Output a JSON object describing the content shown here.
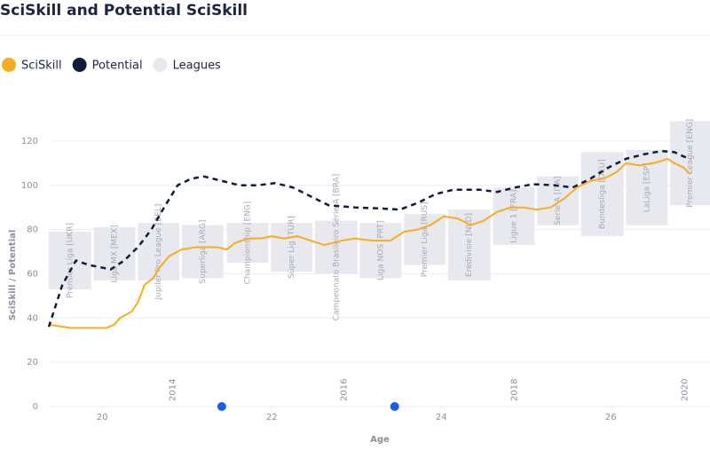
{
  "chart_data": {
    "type": "line",
    "title": "SciSkill and Potential SciSkill",
    "y_label": "SciSkill / Potential",
    "x_label": "Age",
    "xlim": [
      19.37,
      27.17
    ],
    "ylim": [
      0,
      130
    ],
    "xticks": [
      20,
      22,
      24,
      26
    ],
    "yticks": [
      0,
      20,
      40,
      60,
      80,
      100,
      120
    ],
    "grid": true,
    "legend": "top-left",
    "series": [
      {
        "name": "SciSkill",
        "color": "#fbab1f",
        "dashed": false,
        "x": [
          19.37,
          19.63,
          20.05,
          20.14,
          20.21,
          20.35,
          20.42,
          20.5,
          20.6,
          20.68,
          20.79,
          20.94,
          21.1,
          21.36,
          21.47,
          21.57,
          21.73,
          21.88,
          21.99,
          22.15,
          22.3,
          22.46,
          22.62,
          22.83,
          22.98,
          23.19,
          23.4,
          23.56,
          23.72,
          23.87,
          24.03,
          24.19,
          24.35,
          24.5,
          24.66,
          24.82,
          24.97,
          25.13,
          25.29,
          25.45,
          25.6,
          25.76,
          25.92,
          26.07,
          26.18,
          26.34,
          26.49,
          26.6,
          26.67,
          26.75,
          26.86,
          26.94
        ],
        "values": [
          37,
          35.5,
          35.5,
          37,
          40,
          43,
          47,
          55,
          58,
          63,
          68,
          71,
          72,
          72,
          71,
          74,
          76,
          76,
          77,
          76,
          77,
          75,
          73,
          75,
          76,
          75,
          75,
          79,
          80,
          82,
          86,
          85,
          82,
          84,
          88,
          90,
          90,
          89,
          90,
          94,
          99,
          102,
          103,
          106,
          110,
          109,
          110,
          111,
          112,
          110,
          108,
          105
        ]
      },
      {
        "name": "Potential",
        "color": "#0f1c3c",
        "dashed": true,
        "x": [
          19.37,
          19.53,
          19.69,
          19.84,
          20.1,
          20.26,
          20.42,
          20.58,
          20.73,
          20.89,
          21.05,
          21.2,
          21.41,
          21.62,
          21.83,
          22.04,
          22.25,
          22.46,
          22.67,
          22.98,
          23.3,
          23.51,
          23.72,
          23.93,
          24.14,
          24.45,
          24.66,
          24.87,
          25.08,
          25.34,
          25.55,
          25.76,
          25.97,
          26.18,
          26.39,
          26.6,
          26.75,
          26.86,
          26.94
        ],
        "values": [
          36,
          55,
          66,
          64,
          62,
          66,
          72,
          80,
          90,
          100,
          103,
          104,
          102,
          100,
          100,
          101,
          99,
          95,
          91,
          90,
          89.5,
          89,
          92,
          96,
          98,
          98,
          97,
          99,
          100.5,
          100,
          99,
          103,
          108,
          112,
          114,
          115.5,
          115,
          113,
          112
        ]
      }
    ],
    "leagues": {
      "name": "Leagues",
      "color": "#e8e9ee",
      "items": [
        {
          "label": "Premier Liga [UKR]",
          "x": [
            19.37,
            19.87
          ],
          "range": [
            53,
            79
          ]
        },
        {
          "label": "Liga MX [MEX]",
          "x": [
            19.9,
            20.39
          ],
          "range": [
            57,
            81
          ]
        },
        {
          "label": "Jupiler Pro League [BEL]",
          "x": [
            20.42,
            20.91
          ],
          "range": [
            57,
            83
          ]
        },
        {
          "label": "Superliga [ARG]",
          "x": [
            20.94,
            21.43
          ],
          "range": [
            58,
            82
          ]
        },
        {
          "label": "Championship [ENG]",
          "x": [
            21.47,
            21.96
          ],
          "range": [
            65,
            83
          ]
        },
        {
          "label": "Süper Lig [TUR]",
          "x": [
            21.99,
            22.48
          ],
          "range": [
            61,
            83
          ]
        },
        {
          "label": "Campeonato Brasileiro Série A [BRA]",
          "x": [
            22.51,
            23.01
          ],
          "range": [
            60,
            84
          ]
        },
        {
          "label": "Liga NOS [PRT]",
          "x": [
            23.04,
            23.53
          ],
          "range": [
            58,
            83
          ]
        },
        {
          "label": "Premier Liga [RUS]",
          "x": [
            23.56,
            24.05
          ],
          "range": [
            64,
            87
          ]
        },
        {
          "label": "Eredivisie [NLD]",
          "x": [
            24.08,
            24.58
          ],
          "range": [
            57,
            89
          ]
        },
        {
          "label": "Ligue 1 [FRA]",
          "x": [
            24.61,
            25.1
          ],
          "range": [
            73,
            99
          ]
        },
        {
          "label": "Serie A [ITA]",
          "x": [
            25.13,
            25.62
          ],
          "range": [
            82,
            104
          ]
        },
        {
          "label": "Bundesliga [DEU]",
          "x": [
            25.65,
            26.15
          ],
          "range": [
            77,
            115
          ]
        },
        {
          "label": "LaLiga [ESP]",
          "x": [
            26.18,
            26.67
          ],
          "range": [
            82,
            116
          ]
        },
        {
          "label": "Premier League [ENG]",
          "x": [
            26.7,
            27.17
          ],
          "range": [
            91,
            129
          ]
        }
      ]
    },
    "year_ticks": [
      {
        "value": 20.79,
        "label": "2014"
      },
      {
        "value": 22.81,
        "label": "2016"
      },
      {
        "value": 24.82,
        "label": "2018"
      },
      {
        "value": 26.83,
        "label": "2020"
      }
    ],
    "events": {
      "color": "#1a5fe8",
      "x": [
        21.41,
        23.45
      ],
      "values": [
        0,
        0
      ]
    }
  }
}
